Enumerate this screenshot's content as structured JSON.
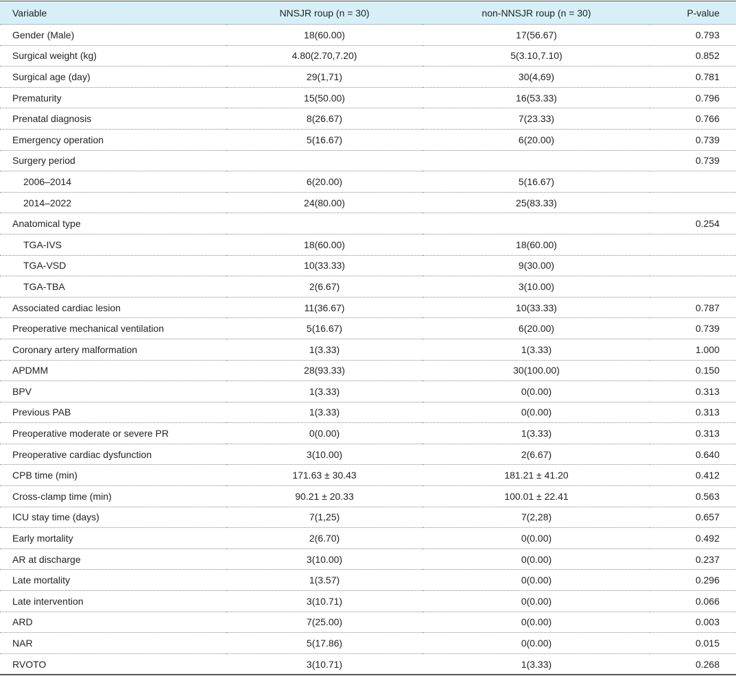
{
  "table": {
    "columns": [
      "Variable",
      "NNSJR roup (n = 30)",
      "non-NNSJR roup (n = 30)",
      "P-value"
    ],
    "rows": [
      [
        "Gender (Male)",
        "18(60.00)",
        "17(56.67)",
        "0.793"
      ],
      [
        "Surgical weight (kg)",
        "4.80(2.70,7.20)",
        "5(3.10,7.10)",
        "0.852"
      ],
      [
        "Surgical age (day)",
        "29(1,71)",
        "30(4,69)",
        "0.781"
      ],
      [
        "Prematurity",
        "15(50.00)",
        "16(53.33)",
        "0.796"
      ],
      [
        "Prenatal diagnosis",
        "8(26.67)",
        "7(23.33)",
        "0.766"
      ],
      [
        "Emergency operation",
        "5(16.67)",
        "6(20.00)",
        "0.739"
      ],
      [
        "Surgery period",
        null,
        null,
        "0.739"
      ],
      [
        "2006–2014",
        "6(20.00)",
        "5(16.67)",
        null
      ],
      [
        "2014–2022",
        "24(80.00)",
        "25(83.33)",
        null
      ],
      [
        "Anatomical type",
        null,
        null,
        "0.254"
      ],
      [
        "TGA-IVS",
        "18(60.00)",
        "18(60.00)",
        null
      ],
      [
        "TGA-VSD",
        "10(33.33)",
        "9(30.00)",
        null
      ],
      [
        "TGA-TBA",
        "2(6.67)",
        "3(10.00)",
        null
      ],
      [
        "Associated cardiac lesion",
        "11(36.67)",
        "10(33.33)",
        "0.787"
      ],
      [
        "Preoperative mechanical ventilation",
        "5(16.67)",
        "6(20.00)",
        "0.739"
      ],
      [
        "Coronary artery malformation",
        "1(3.33)",
        "1(3.33)",
        "1.000"
      ],
      [
        "APDMM",
        "28(93.33)",
        "30(100.00)",
        "0.150"
      ],
      [
        "BPV",
        "1(3.33)",
        "0(0.00)",
        "0.313"
      ],
      [
        "Previous PAB",
        "1(3.33)",
        "0(0.00)",
        "0.313"
      ],
      [
        "Preoperative moderate or severe PR",
        "0(0.00)",
        "1(3.33)",
        "0.313"
      ],
      [
        "Preoperative cardiac dysfunction",
        "3(10.00)",
        "2(6.67)",
        "0.640"
      ],
      [
        "CPB time (min)",
        "171.63 ± 30.43",
        "181.21 ± 41.20",
        "0.412"
      ],
      [
        "Cross-clamp time (min)",
        "90.21 ± 20.33",
        "100.01 ± 22.41",
        "0.563"
      ],
      [
        "ICU stay time (days)",
        "7(1,25)",
        "7(2,28)",
        "0.657"
      ],
      [
        "Early mortality",
        "2(6.70)",
        "0(0.00)",
        "0.492"
      ],
      [
        "AR at discharge",
        "3(10.00)",
        "0(0.00)",
        "0.237"
      ],
      [
        "Late mortality",
        "1(3.57)",
        "0(0.00)",
        "0.296"
      ],
      [
        "Late intervention",
        "3(10.71)",
        "0(0.00)",
        "0.066"
      ],
      [
        "ARD",
        "7(25.00)",
        "0(0.00)",
        "0.003"
      ],
      [
        "NAR",
        "5(17.86)",
        "0(0.00)",
        "0.015"
      ],
      [
        "RVOTO",
        "3(10.71)",
        "1(3.33)",
        "0.268"
      ]
    ]
  }
}
